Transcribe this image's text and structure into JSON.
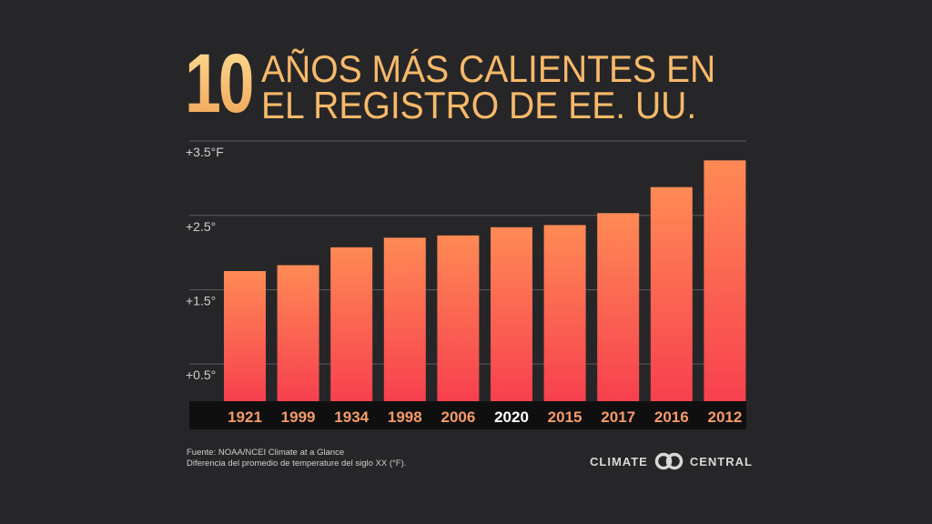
{
  "title": {
    "number": "10",
    "line1": "AÑOS MÁS CALIENTES EN",
    "line2": "EL REGISTRO DE EE. UU."
  },
  "chart_data": {
    "type": "bar",
    "categories": [
      "1921",
      "1999",
      "1934",
      "1998",
      "2006",
      "2020",
      "2015",
      "2017",
      "2016",
      "2012"
    ],
    "values": [
      1.75,
      1.83,
      2.07,
      2.2,
      2.23,
      2.34,
      2.37,
      2.53,
      2.88,
      3.24
    ],
    "highlighted_category": "2020",
    "ylim": [
      0,
      3.5
    ],
    "yticks": [
      {
        "value": 0.5,
        "label": "+0.5°"
      },
      {
        "value": 1.5,
        "label": "+1.5°"
      },
      {
        "value": 2.5,
        "label": "+2.5°"
      },
      {
        "value": 3.5,
        "label": "+3.5°F"
      }
    ],
    "grid": true,
    "colors": {
      "bar_top": "#ff8a55",
      "bar_bottom": "#f7404e",
      "category_label": "#f59a6a",
      "highlight_label": "#ffffff",
      "grid": "#5a5a5c"
    }
  },
  "footer": {
    "source_line1": "Fuente: NOAA/NCEI Climate at a Glance",
    "source_line2": "Diferencia del promedio de temperature del siglo XX (°F).",
    "logo_left": "CLIMATE",
    "logo_right": "CENTRAL",
    "logo_icon": "climate-central-rings-icon"
  }
}
